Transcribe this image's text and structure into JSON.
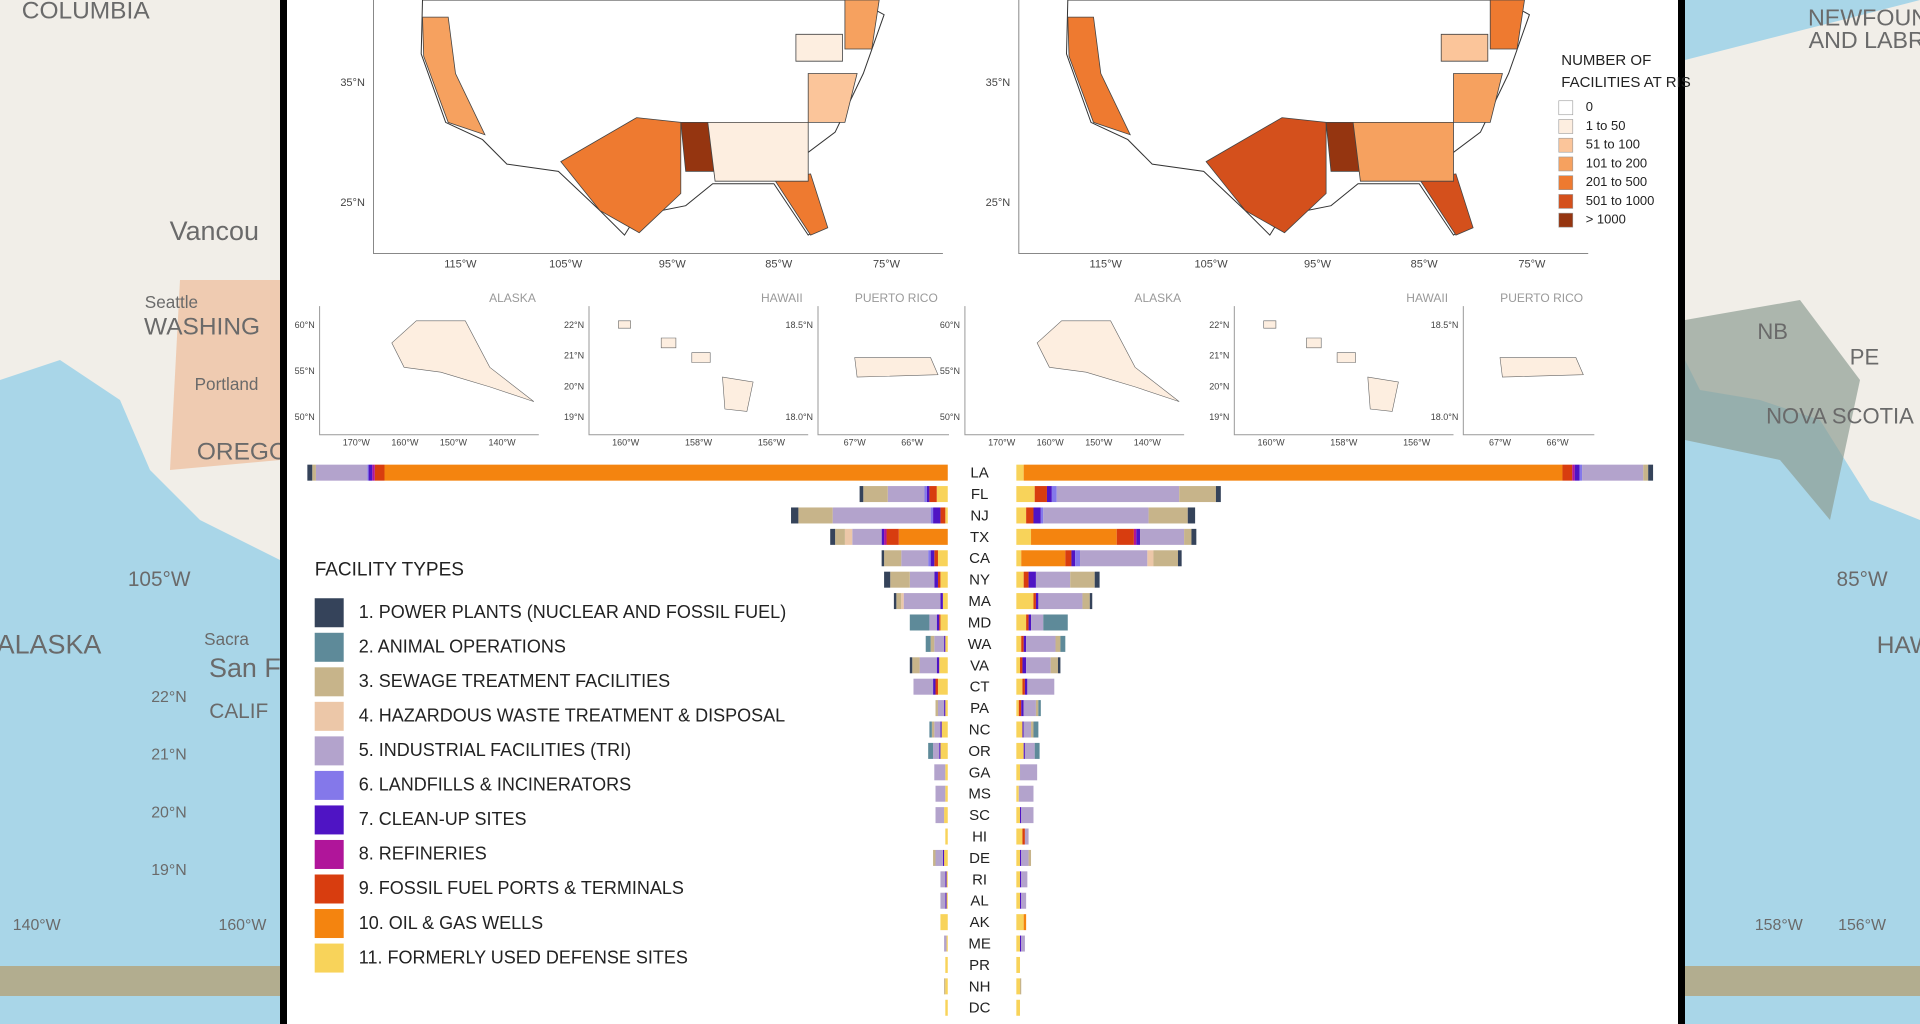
{
  "background_labels": {
    "left": [
      "COLUMBIA",
      "Vancou",
      "Seattle",
      "WASHING",
      "Portland",
      "OREGO",
      "105°W",
      "ALASKA",
      "Sacra",
      "San F",
      "CALIF",
      "22°N",
      "21°N",
      "20°N",
      "19°N",
      "140°W",
      "160°W"
    ],
    "right": [
      "NEWFOUNDL",
      "AND LABRAD",
      "NB",
      "PE",
      "NOVA SCOTIA",
      "85°W",
      "HAWAI",
      "158°W",
      "156°W"
    ]
  },
  "maps": {
    "lat_labels": [
      "35°N",
      "25°N"
    ],
    "lon_labels": [
      "115°W",
      "105°W",
      "95°W",
      "85°W",
      "75°W"
    ],
    "insets": [
      {
        "title": "ALASKA",
        "lat_labels": [
          "60°N",
          "55°N",
          "50°N"
        ],
        "lon_labels": [
          "170°W",
          "160°W",
          "150°W",
          "140°W"
        ]
      },
      {
        "title": "HAWAII",
        "lat_labels": [
          "22°N",
          "21°N",
          "20°N",
          "19°N"
        ],
        "lon_labels": [
          "160°W",
          "158°W",
          "156°W"
        ]
      },
      {
        "title": "PUERTO RICO",
        "lat_labels": [
          "18.5°N",
          "18.0°N"
        ],
        "lon_labels": [
          "67°W",
          "66°W"
        ]
      }
    ],
    "legend": {
      "title": [
        "NUMBER OF",
        "FACILITIES AT RIS"
      ],
      "entries": [
        {
          "label": "0",
          "color": "#ffffff"
        },
        {
          "label": "1 to 50",
          "color": "#fdeee0"
        },
        {
          "label": "51 to 100",
          "color": "#fbc59a"
        },
        {
          "label": "101 to 200",
          "color": "#f6a15f"
        },
        {
          "label": "201 to 500",
          "color": "#ee7a30"
        },
        {
          "label": "501 to 1000",
          "color": "#d4501c"
        },
        {
          "label": "> 1000",
          "color": "#953510"
        }
      ]
    }
  },
  "legend_title": "FACILITY TYPES",
  "chart_data": [
    {
      "type": "bar",
      "categories": [
        "LA",
        "FL",
        "NJ",
        "TX",
        "CA",
        "NY",
        "MA",
        "MD",
        "WA",
        "VA",
        "CT",
        "PA",
        "NC",
        "OR",
        "GA",
        "MS",
        "SC",
        "HI",
        "DE",
        "RI",
        "AL",
        "AK",
        "ME",
        "PR",
        "NH",
        "DC"
      ],
      "series": [
        {
          "name": "1. POWER PLANTS (NUCLEAR AND FOSSIL FUEL)",
          "color": "#35435a",
          "values": [
            4,
            3,
            6,
            4,
            2,
            5,
            2,
            0,
            0,
            2,
            0,
            0,
            0,
            0,
            0,
            0,
            0,
            0,
            0,
            0,
            0,
            0,
            0,
            0,
            0,
            0
          ]
        },
        {
          "name": "2. ANIMAL OPERATIONS",
          "color": "#5e8a99",
          "values": [
            0,
            0,
            0,
            0,
            0,
            0,
            0,
            16,
            4,
            0,
            0,
            0,
            2,
            4,
            0,
            0,
            0,
            0,
            0,
            0,
            0,
            0,
            0,
            0,
            0,
            0
          ]
        },
        {
          "name": "3. SEWAGE TREATMENT FACILITIES",
          "color": "#c7b48a",
          "values": [
            3,
            20,
            28,
            8,
            14,
            16,
            4,
            0,
            3,
            6,
            0,
            2,
            2,
            0,
            0,
            0,
            0,
            0,
            2,
            0,
            0,
            0,
            0,
            0,
            1,
            0
          ]
        },
        {
          "name": "4. HAZARDOUS WASTE TREATMENT & DISPOSAL",
          "color": "#ecc7a8",
          "values": [
            0,
            0,
            0,
            6,
            0,
            0,
            2,
            0,
            0,
            0,
            0,
            0,
            0,
            0,
            0,
            0,
            0,
            0,
            0,
            0,
            0,
            0,
            0,
            0,
            0,
            0
          ]
        },
        {
          "name": "5. INDUSTRIAL FACILITIES (TRI)",
          "color": "#b3a3cc",
          "values": [
            42,
            30,
            80,
            24,
            22,
            20,
            30,
            6,
            8,
            14,
            16,
            5,
            5,
            5,
            9,
            8,
            7,
            0,
            6,
            4,
            4,
            0,
            2,
            0,
            0,
            0
          ]
        },
        {
          "name": "6. LANDFILLS & INCINERATORS",
          "color": "#8478ea",
          "values": [
            1,
            2,
            2,
            0,
            2,
            0,
            0,
            0,
            0,
            0,
            0,
            0,
            0,
            0,
            0,
            0,
            0,
            0,
            0,
            0,
            0,
            0,
            0,
            0,
            0,
            0
          ]
        },
        {
          "name": "7. CLEAN-UP SITES",
          "color": "#4f14c4",
          "values": [
            3,
            2,
            6,
            2,
            3,
            3,
            2,
            2,
            1,
            2,
            2,
            1,
            1,
            1,
            0,
            0,
            0,
            0,
            1,
            1,
            1,
            0,
            0,
            0,
            0,
            0
          ]
        },
        {
          "name": "8. REFINERIES",
          "color": "#b0159a",
          "values": [
            2,
            0,
            0,
            2,
            0,
            0,
            0,
            0,
            0,
            0,
            0,
            0,
            0,
            0,
            0,
            0,
            0,
            0,
            0,
            0,
            0,
            0,
            0,
            0,
            0,
            0
          ]
        },
        {
          "name": "9. FOSSIL FUEL PORTS & TERMINALS",
          "color": "#d83d0f",
          "values": [
            8,
            6,
            4,
            10,
            3,
            2,
            0,
            1,
            0,
            0,
            2,
            0,
            0,
            0,
            0,
            0,
            0,
            0,
            0,
            0,
            0,
            0,
            0,
            0,
            0,
            0
          ]
        },
        {
          "name": "10. OIL & GAS WELLS",
          "color": "#f4840f",
          "values": [
            460,
            0,
            0,
            40,
            0,
            0,
            0,
            0,
            0,
            0,
            0,
            0,
            0,
            0,
            0,
            0,
            0,
            0,
            0,
            0,
            0,
            0,
            0,
            0,
            0,
            0
          ]
        },
        {
          "name": "11. FORMERLY USED DEFENSE SITES",
          "color": "#f8d35a",
          "values": [
            0,
            9,
            2,
            0,
            8,
            6,
            4,
            6,
            2,
            7,
            8,
            2,
            5,
            6,
            2,
            2,
            3,
            2,
            3,
            1,
            1,
            6,
            1,
            2,
            2,
            2
          ]
        }
      ]
    },
    {
      "type": "bar",
      "series": [
        {
          "color": "#35435a",
          "values": [
            4,
            4,
            6,
            4,
            3,
            4,
            2,
            0,
            0,
            2,
            0,
            0,
            0,
            0,
            0,
            0,
            0,
            0,
            0,
            0,
            0,
            0,
            0,
            0,
            0,
            0
          ]
        },
        {
          "color": "#5e8a99",
          "values": [
            0,
            0,
            0,
            0,
            0,
            0,
            0,
            20,
            4,
            0,
            0,
            2,
            4,
            4,
            0,
            0,
            0,
            0,
            0,
            0,
            0,
            0,
            0,
            0,
            0,
            0
          ]
        },
        {
          "color": "#c7b48a",
          "values": [
            4,
            30,
            32,
            6,
            20,
            20,
            6,
            0,
            4,
            6,
            0,
            2,
            2,
            0,
            0,
            0,
            0,
            0,
            2,
            0,
            0,
            0,
            0,
            0,
            1,
            0
          ]
        },
        {
          "color": "#ecc7a8",
          "values": [
            0,
            0,
            0,
            0,
            5,
            0,
            0,
            0,
            0,
            0,
            0,
            0,
            0,
            0,
            0,
            0,
            0,
            0,
            0,
            0,
            0,
            0,
            0,
            0,
            0,
            0
          ]
        },
        {
          "color": "#b3a3cc",
          "values": [
            50,
            100,
            86,
            36,
            55,
            28,
            36,
            10,
            24,
            20,
            22,
            10,
            6,
            8,
            14,
            12,
            10,
            3,
            6,
            5,
            4,
            0,
            3,
            0,
            0,
            0
          ]
        },
        {
          "color": "#8478ea",
          "values": [
            2,
            4,
            2,
            0,
            4,
            0,
            0,
            0,
            0,
            0,
            0,
            0,
            0,
            0,
            0,
            0,
            0,
            0,
            0,
            0,
            0,
            0,
            0,
            0,
            0,
            0
          ]
        },
        {
          "color": "#4f14c4",
          "values": [
            4,
            4,
            6,
            3,
            3,
            6,
            2,
            2,
            2,
            3,
            2,
            2,
            1,
            1,
            0,
            0,
            1,
            0,
            1,
            1,
            1,
            0,
            1,
            0,
            0,
            0
          ]
        },
        {
          "color": "#b0159a",
          "values": [
            2,
            0,
            0,
            2,
            0,
            0,
            0,
            0,
            0,
            0,
            0,
            0,
            0,
            0,
            0,
            0,
            0,
            0,
            0,
            0,
            0,
            0,
            0,
            0,
            0,
            0
          ]
        },
        {
          "color": "#d83d0f",
          "values": [
            8,
            10,
            6,
            14,
            5,
            4,
            2,
            2,
            2,
            2,
            2,
            2,
            0,
            0,
            0,
            0,
            0,
            2,
            0,
            0,
            0,
            0,
            0,
            0,
            0,
            0
          ]
        },
        {
          "color": "#f4840f",
          "values": [
            440,
            0,
            0,
            70,
            36,
            0,
            0,
            0,
            0,
            0,
            0,
            0,
            0,
            0,
            0,
            0,
            0,
            0,
            0,
            0,
            0,
            2,
            0,
            0,
            0,
            0
          ]
        },
        {
          "color": "#f8d35a",
          "values": [
            6,
            15,
            8,
            12,
            4,
            6,
            14,
            8,
            4,
            3,
            5,
            2,
            5,
            6,
            3,
            2,
            3,
            5,
            3,
            3,
            3,
            6,
            3,
            3,
            3,
            3
          ]
        }
      ]
    }
  ]
}
